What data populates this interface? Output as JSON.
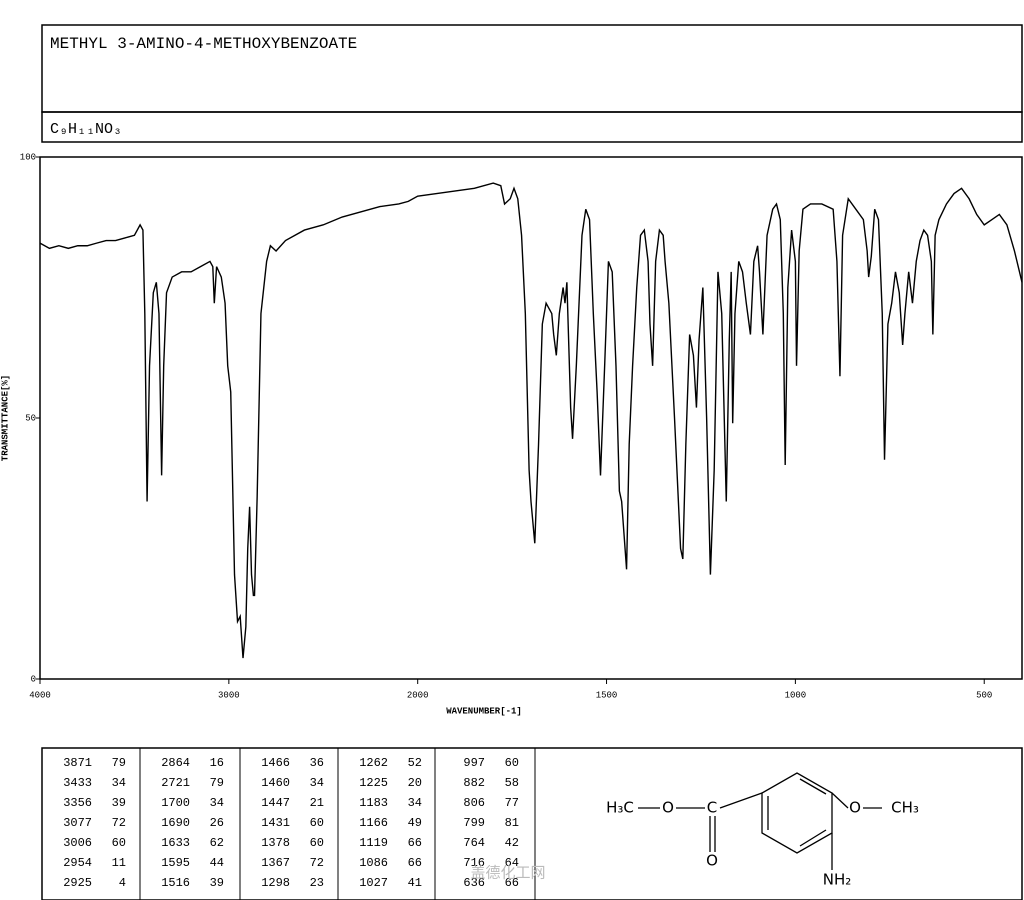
{
  "header": {
    "title": "METHYL 3-AMINO-4-METHOXYBENZOATE",
    "formula": "C₉H₁₁NO₃"
  },
  "chart_data": {
    "type": "line",
    "x_label": "WAVENUMBER[-1]",
    "y_label": "TRANSMITTANCE[%]",
    "xlim": [
      4000,
      400
    ],
    "x_scale_break": 2000,
    "xticks": [
      4000,
      3000,
      2000,
      1500,
      1000,
      500
    ],
    "ylim": [
      0,
      100
    ],
    "yticks": [
      0,
      50,
      100
    ],
    "x": [
      4000,
      3950,
      3900,
      3850,
      3800,
      3750,
      3700,
      3650,
      3600,
      3550,
      3500,
      3470,
      3455,
      3445,
      3433,
      3420,
      3400,
      3384,
      3370,
      3356,
      3345,
      3330,
      3300,
      3250,
      3200,
      3150,
      3100,
      3085,
      3077,
      3065,
      3040,
      3020,
      3006,
      2990,
      2970,
      2954,
      2940,
      2925,
      2910,
      2900,
      2890,
      2880,
      2870,
      2864,
      2850,
      2830,
      2800,
      2780,
      2750,
      2700,
      2600,
      2500,
      2400,
      2300,
      2200,
      2100,
      2050,
      2000,
      1950,
      1900,
      1850,
      1800,
      1780,
      1770,
      1755,
      1745,
      1735,
      1725,
      1715,
      1705,
      1700,
      1690,
      1680,
      1670,
      1660,
      1645,
      1640,
      1633,
      1625,
      1615,
      1610,
      1605,
      1595,
      1590,
      1580,
      1565,
      1555,
      1545,
      1535,
      1525,
      1516,
      1505,
      1495,
      1485,
      1475,
      1466,
      1460,
      1447,
      1440,
      1431,
      1420,
      1410,
      1400,
      1390,
      1385,
      1378,
      1370,
      1360,
      1350,
      1345,
      1335,
      1320,
      1304,
      1298,
      1290,
      1280,
      1270,
      1262,
      1255,
      1245,
      1235,
      1225,
      1215,
      1205,
      1195,
      1183,
      1175,
      1170,
      1166,
      1160,
      1150,
      1140,
      1130,
      1119,
      1110,
      1100,
      1095,
      1086,
      1075,
      1060,
      1050,
      1040,
      1032,
      1027,
      1020,
      1010,
      1000,
      997,
      990,
      980,
      960,
      930,
      900,
      890,
      882,
      875,
      860,
      840,
      820,
      810,
      806,
      799,
      790,
      780,
      770,
      764,
      755,
      745,
      735,
      725,
      716,
      710,
      700,
      690,
      680,
      670,
      660,
      650,
      640,
      636,
      630,
      620,
      600,
      580,
      560,
      540,
      520,
      500,
      480,
      460,
      440,
      420,
      400
    ],
    "series": [
      {
        "color": "#000000",
        "values": [
          83.5,
          82.5,
          83,
          82.5,
          83,
          83,
          83.5,
          84,
          84,
          84.5,
          85,
          87,
          86,
          70,
          34,
          60,
          74,
          76,
          70,
          39,
          60,
          74,
          77,
          78,
          78,
          79,
          80,
          79,
          72,
          79,
          77,
          72,
          60,
          55,
          20,
          11,
          12,
          4,
          10,
          25,
          33,
          20,
          16,
          16,
          35,
          70,
          80,
          83,
          82,
          84,
          86,
          87,
          88.5,
          89.5,
          90.5,
          91,
          91.5,
          92.5,
          93,
          93.5,
          94,
          95,
          94.5,
          91,
          92,
          94,
          92,
          85,
          70,
          40,
          34,
          26,
          45,
          68,
          72,
          70,
          66,
          62,
          70,
          75,
          72,
          76,
          52,
          46,
          60,
          85,
          90,
          88,
          70,
          55,
          39,
          60,
          80,
          78,
          60,
          36,
          34,
          21,
          45,
          60,
          75,
          85,
          86,
          80,
          68,
          60,
          80,
          86,
          85,
          80,
          72,
          50,
          25,
          23,
          45,
          66,
          62,
          52,
          65,
          75,
          50,
          20,
          40,
          78,
          70,
          34,
          65,
          78,
          49,
          70,
          80,
          78,
          72,
          66,
          80,
          83,
          78,
          66,
          85,
          90,
          91,
          88,
          70,
          41,
          75,
          86,
          80,
          60,
          82,
          90,
          91,
          91,
          90,
          80,
          58,
          85,
          92,
          90,
          88,
          82,
          77,
          81,
          90,
          88,
          70,
          42,
          68,
          72,
          78,
          74,
          64,
          70,
          78,
          72,
          80,
          84,
          86,
          85,
          80,
          66,
          85,
          88,
          91,
          93,
          94,
          92,
          89,
          87,
          88,
          89,
          87,
          82,
          76
        ]
      }
    ]
  },
  "peak_table": {
    "columns": [
      [
        [
          3871,
          79
        ],
        [
          3433,
          34
        ],
        [
          3356,
          39
        ],
        [
          3077,
          72
        ],
        [
          3006,
          60
        ],
        [
          2954,
          11
        ],
        [
          2925,
          4
        ]
      ],
      [
        [
          2864,
          16
        ],
        [
          2721,
          79
        ],
        [
          1700,
          34
        ],
        [
          1690,
          26
        ],
        [
          1633,
          62
        ],
        [
          1595,
          44
        ],
        [
          1516,
          39
        ]
      ],
      [
        [
          1466,
          36
        ],
        [
          1460,
          34
        ],
        [
          1447,
          21
        ],
        [
          1431,
          60
        ],
        [
          1378,
          60
        ],
        [
          1367,
          72
        ],
        [
          1298,
          23
        ]
      ],
      [
        [
          1262,
          52
        ],
        [
          1225,
          20
        ],
        [
          1183,
          34
        ],
        [
          1166,
          49
        ],
        [
          1119,
          66
        ],
        [
          1086,
          66
        ],
        [
          1027,
          41
        ]
      ],
      [
        [
          997,
          60
        ],
        [
          882,
          58
        ],
        [
          806,
          77
        ],
        [
          799,
          81
        ],
        [
          764,
          42
        ],
        [
          716,
          64
        ],
        [
          636,
          66
        ]
      ]
    ]
  },
  "structure": {
    "labels": [
      "H₃C",
      "O",
      "C",
      "O",
      "O",
      "CH₃",
      "NH₂"
    ]
  },
  "watermark": "盖德化工网"
}
